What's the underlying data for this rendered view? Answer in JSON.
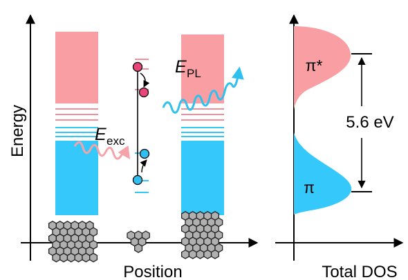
{
  "left_panel": {
    "y_axis_label": "Energy",
    "x_axis_label": "Position",
    "excitation_symbol": "E",
    "excitation_subscript": "exc",
    "pl_symbol": "E",
    "pl_subscript": "PL"
  },
  "right_panel": {
    "x_axis_label": "Total DOS",
    "upper_band_label": "π*",
    "lower_band_label": "π",
    "gap_label": "5.6 eV"
  },
  "colors": {
    "conduction_band": "#f99ea2",
    "valence_band": "#34c9fa",
    "electron": "#e8467a",
    "hole": "#2fbff0",
    "hexagon_fill": "#b0b0b0"
  },
  "icons": [
    "wavy-arrow-icon",
    "hexagon-lattice-icon",
    "electron-dot-icon",
    "hole-dot-icon"
  ]
}
